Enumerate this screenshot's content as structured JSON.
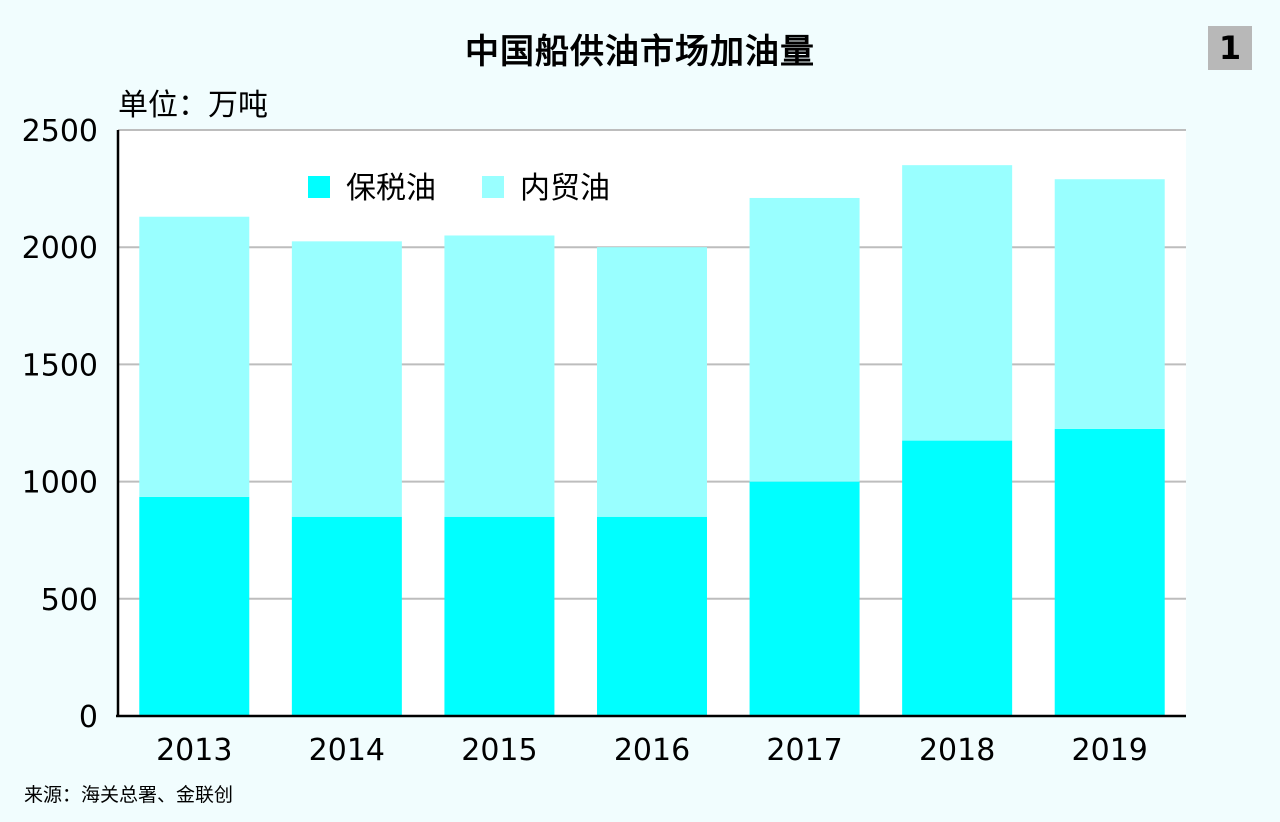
{
  "badge": "1",
  "source": "来源：海关总署、金联创",
  "colors": {
    "background": "#f1fdfe",
    "bonded": "#00ffff",
    "domestic": "#99ffff",
    "grid": "#bdbdbd",
    "axis": "#000000"
  },
  "chart_data": {
    "type": "bar",
    "stacked": true,
    "title": "中国船供油市场加油量",
    "unit_label": "单位：万吨",
    "xlabel": "",
    "ylabel": "",
    "categories": [
      "2013",
      "2014",
      "2015",
      "2016",
      "2017",
      "2018",
      "2019"
    ],
    "series": [
      {
        "name": "保税油",
        "values": [
          935,
          850,
          850,
          850,
          1000,
          1175,
          1225
        ]
      },
      {
        "name": "内贸油",
        "values": [
          1195,
          1175,
          1200,
          1150,
          1210,
          1175,
          1065
        ]
      }
    ],
    "ylim": [
      0,
      2500
    ],
    "yticks": [
      "0",
      "500",
      "1000",
      "1500",
      "2000",
      "2500"
    ],
    "grid": true,
    "legend_position": "top-left"
  }
}
